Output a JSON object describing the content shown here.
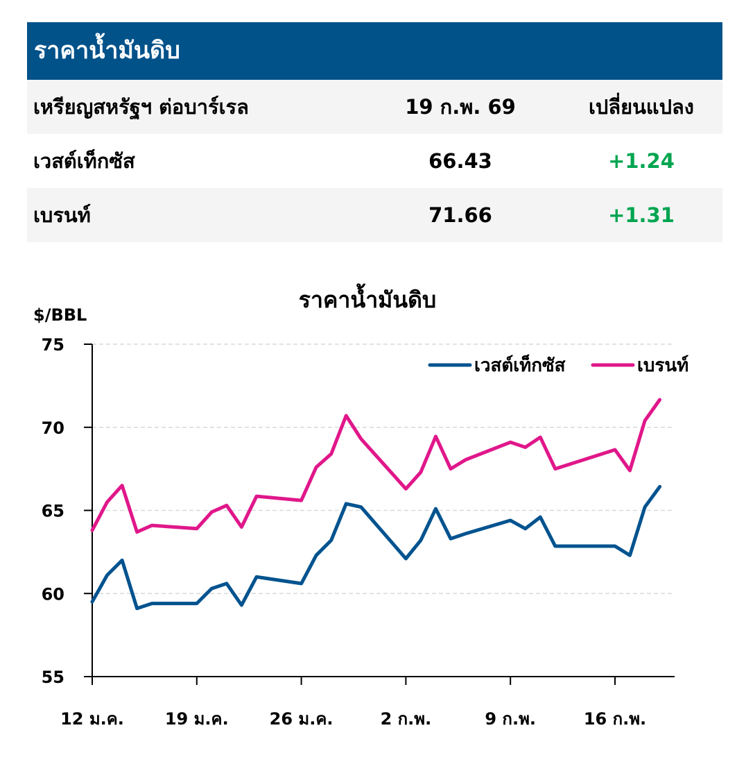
{
  "table": {
    "title": "ราคาน้ำมันดิบ",
    "header": {
      "unit": "เหรียญสหรัฐฯ ต่อบาร์เรล",
      "date": "19 ก.พ. 69",
      "change": "เปลี่ยนแปลง"
    },
    "rows": [
      {
        "name": "เวสต์เท็กซัส",
        "price": "66.43",
        "change": "+1.24"
      },
      {
        "name": "เบรนท์",
        "price": "71.66",
        "change": "+1.31"
      }
    ],
    "colors": {
      "header_bg": "#02528a",
      "positive": "#00a550"
    }
  },
  "chart_data": {
    "type": "line",
    "title": "ราคาน้ำมันดิบ",
    "ylabel": "$/BBL",
    "ylim": [
      55,
      75
    ],
    "yticks": [
      "55",
      "60",
      "65",
      "70",
      "75"
    ],
    "xticks": [
      {
        "date": "2026-01-12",
        "label": "12 ม.ค."
      },
      {
        "date": "2026-01-19",
        "label": "19 ม.ค."
      },
      {
        "date": "2026-01-26",
        "label": "26 ม.ค."
      },
      {
        "date": "2026-02-02",
        "label": "2 ก.พ."
      },
      {
        "date": "2026-02-09",
        "label": "9 ก.พ."
      },
      {
        "date": "2026-02-16",
        "label": "16 ก.พ."
      }
    ],
    "grid": true,
    "legend_position": "top-right",
    "x": [
      "2026-01-12",
      "2026-01-13",
      "2026-01-14",
      "2026-01-15",
      "2026-01-16",
      "2026-01-19",
      "2026-01-20",
      "2026-01-21",
      "2026-01-22",
      "2026-01-23",
      "2026-01-26",
      "2026-01-27",
      "2026-01-28",
      "2026-01-29",
      "2026-01-30",
      "2026-02-02",
      "2026-02-03",
      "2026-02-04",
      "2026-02-05",
      "2026-02-06",
      "2026-02-09",
      "2026-02-10",
      "2026-02-11",
      "2026-02-12",
      "2026-02-16",
      "2026-02-17",
      "2026-02-18",
      "2026-02-19"
    ],
    "series": [
      {
        "name": "เวสต์เท็กซัส",
        "color": "#00538f",
        "values": [
          59.5,
          61.1,
          62.0,
          59.1,
          59.4,
          59.4,
          60.3,
          60.6,
          59.3,
          61.0,
          60.6,
          62.3,
          63.2,
          65.4,
          65.2,
          62.1,
          63.2,
          65.1,
          63.3,
          63.6,
          64.4,
          63.9,
          64.6,
          62.85,
          62.85,
          62.3,
          65.2,
          66.43
        ]
      },
      {
        "name": "เบรนท์",
        "color": "#e0178a",
        "values": [
          63.8,
          65.5,
          66.5,
          63.7,
          64.1,
          63.9,
          64.9,
          65.3,
          64.0,
          65.85,
          65.6,
          67.6,
          68.4,
          70.7,
          69.3,
          66.3,
          67.3,
          69.45,
          67.5,
          68.05,
          69.1,
          68.8,
          69.4,
          67.5,
          68.65,
          67.4,
          70.4,
          71.66
        ]
      }
    ]
  }
}
